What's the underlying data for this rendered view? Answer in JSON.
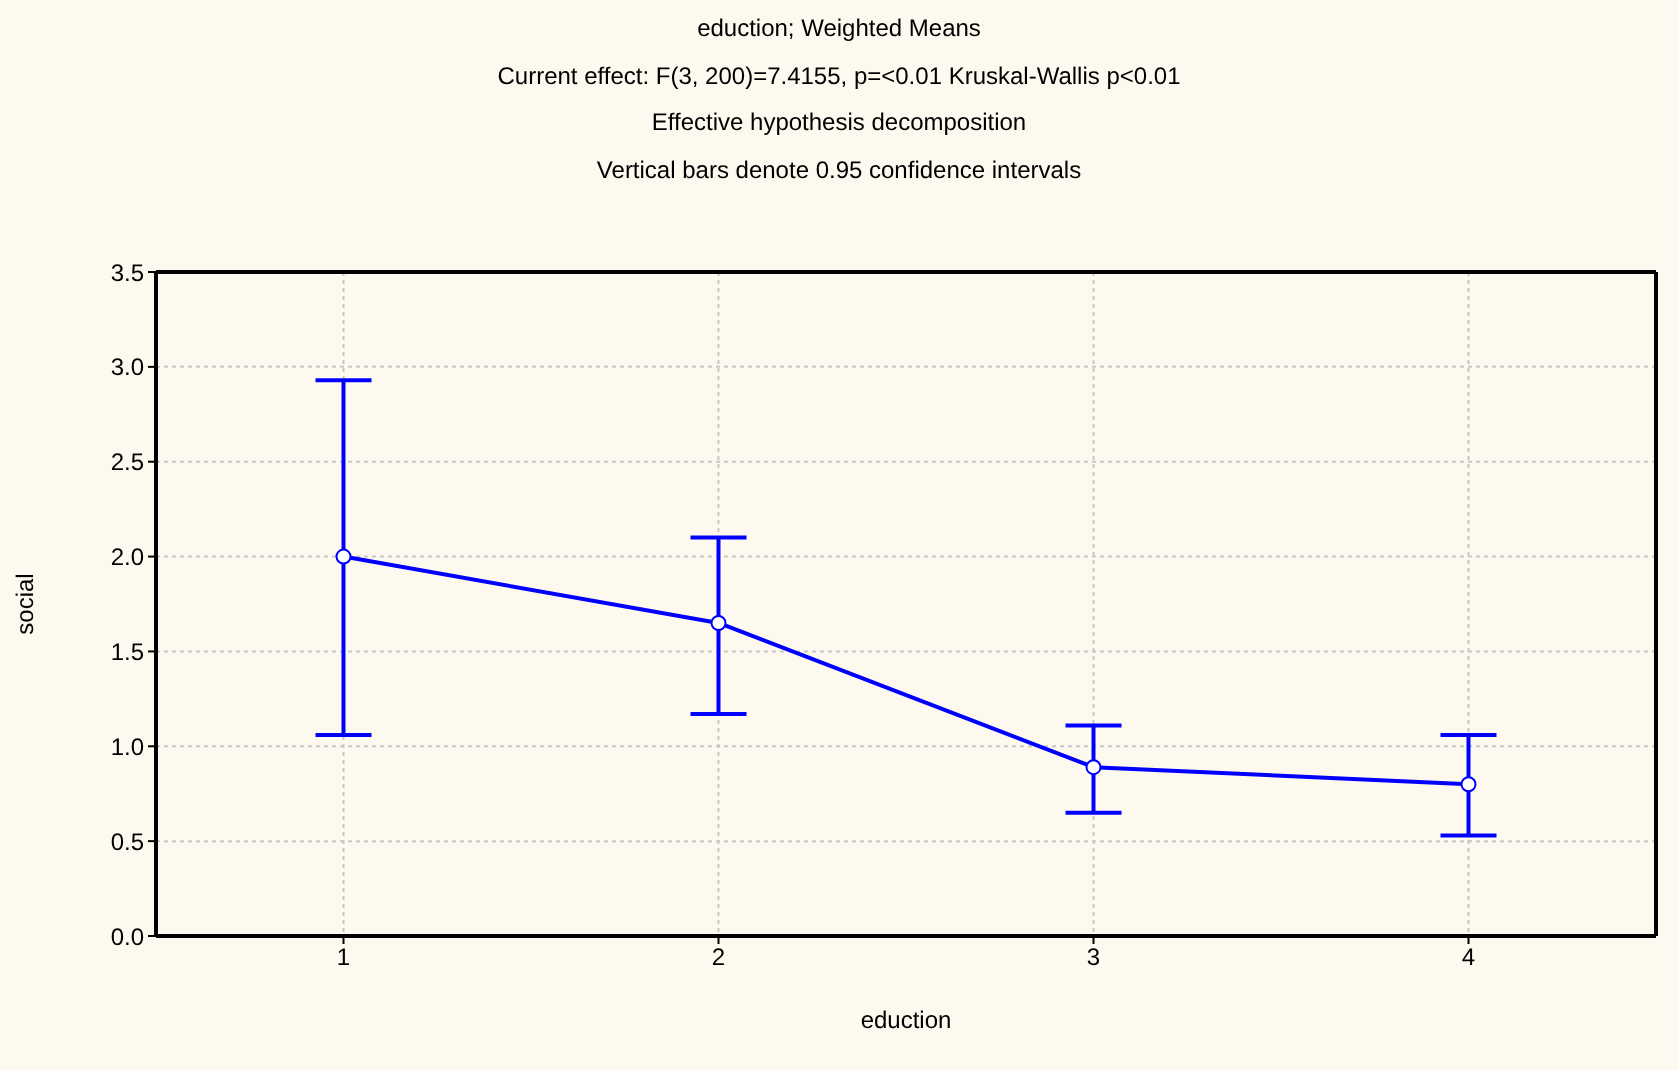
{
  "chart_data": {
    "type": "line",
    "title": "eduction; Weighted Means",
    "subtitle": "Current effect: F(3, 200)=7.4155, p=<0.01 Kruskal-Wallis p<0.01",
    "annotations": [
      "Effective hypothesis decomposition",
      "Vertical bars denote 0.95 confidence intervals"
    ],
    "xlabel": "eduction",
    "ylabel": "social",
    "categories": [
      "1",
      "2",
      "3",
      "4"
    ],
    "series": [
      {
        "color": "#0000ff",
        "values": [
          2.0,
          1.65,
          0.89,
          0.8
        ],
        "errors": [
          [
            1.06,
            2.93
          ],
          [
            1.17,
            2.1
          ],
          [
            0.65,
            1.11
          ],
          [
            0.53,
            1.06
          ]
        ]
      }
    ],
    "ylim": [
      0,
      3.5
    ],
    "yticks": [
      {
        "value": 0,
        "label": "0.0"
      },
      {
        "value": 0.5,
        "label": "0.5"
      },
      {
        "value": 1,
        "label": "1.0"
      },
      {
        "value": 1.5,
        "label": "1.5"
      },
      {
        "value": 2,
        "label": "2.0"
      },
      {
        "value": 2.5,
        "label": "2.5"
      },
      {
        "value": 3,
        "label": "3.0"
      },
      {
        "value": 3.5,
        "label": "3.5"
      }
    ],
    "grid": true,
    "marker": "circle",
    "line_style": "solid"
  }
}
